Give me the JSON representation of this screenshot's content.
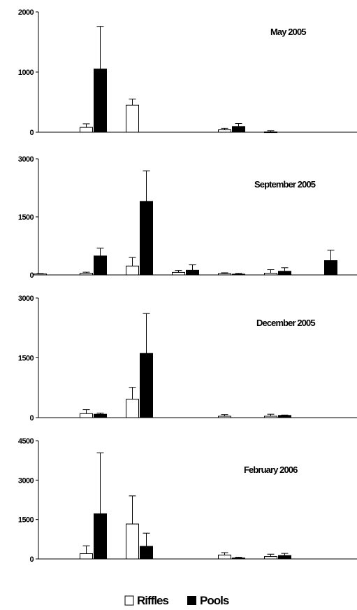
{
  "chart_data": [
    {
      "type": "bar",
      "title": "May 2005",
      "ylim": [
        0,
        2000
      ],
      "yticks": [
        "0",
        "1000",
        "2000"
      ],
      "groups": 7,
      "series": [
        {
          "name": "Riffles",
          "values": [
            null,
            80,
            450,
            null,
            40,
            5,
            null
          ],
          "errors": [
            null,
            60,
            100,
            null,
            25,
            20,
            null
          ]
        },
        {
          "name": "Pools",
          "values": [
            null,
            1050,
            null,
            null,
            95,
            null,
            null
          ],
          "errors": [
            null,
            710,
            null,
            null,
            50,
            null,
            null
          ]
        }
      ]
    },
    {
      "type": "bar",
      "title": "September 2005",
      "ylim": [
        0,
        3000
      ],
      "yticks": [
        "0",
        "1500",
        "3000"
      ],
      "groups": 7,
      "series": [
        {
          "name": "Riffles",
          "values": [
            25,
            45,
            230,
            65,
            35,
            45,
            null
          ],
          "errors": [
            10,
            25,
            220,
            50,
            20,
            90,
            null
          ]
        },
        {
          "name": "Pools",
          "values": [
            null,
            490,
            1900,
            120,
            20,
            95,
            370
          ],
          "errors": [
            null,
            200,
            790,
            140,
            20,
            90,
            270
          ]
        }
      ]
    },
    {
      "type": "bar",
      "title": "December 2005",
      "ylim": [
        0,
        3000
      ],
      "yticks": [
        "0",
        "1500",
        "3000"
      ],
      "groups": 7,
      "series": [
        {
          "name": "Riffles",
          "values": [
            null,
            100,
            460,
            null,
            35,
            35,
            null
          ],
          "errors": [
            null,
            100,
            300,
            null,
            40,
            50,
            null
          ]
        },
        {
          "name": "Pools",
          "values": [
            null,
            85,
            1610,
            null,
            null,
            55,
            null
          ],
          "errors": [
            null,
            30,
            1000,
            null,
            null,
            10,
            null
          ]
        }
      ]
    },
    {
      "type": "bar",
      "title": "February 2006",
      "ylim": [
        0,
        4500
      ],
      "yticks": [
        "0",
        "1500",
        "3000",
        "4500"
      ],
      "groups": 7,
      "series": [
        {
          "name": "Riffles",
          "values": [
            null,
            200,
            1330,
            null,
            150,
            90,
            null
          ],
          "errors": [
            null,
            300,
            1070,
            null,
            90,
            90,
            null
          ]
        },
        {
          "name": "Pools",
          "values": [
            null,
            1720,
            480,
            null,
            35,
            130,
            null
          ],
          "errors": [
            null,
            2320,
            500,
            null,
            30,
            80,
            null
          ]
        }
      ]
    }
  ],
  "legend": {
    "items": [
      {
        "label": "Riffles",
        "color": "#ffffff"
      },
      {
        "label": "Pools",
        "color": "#000000"
      }
    ]
  }
}
